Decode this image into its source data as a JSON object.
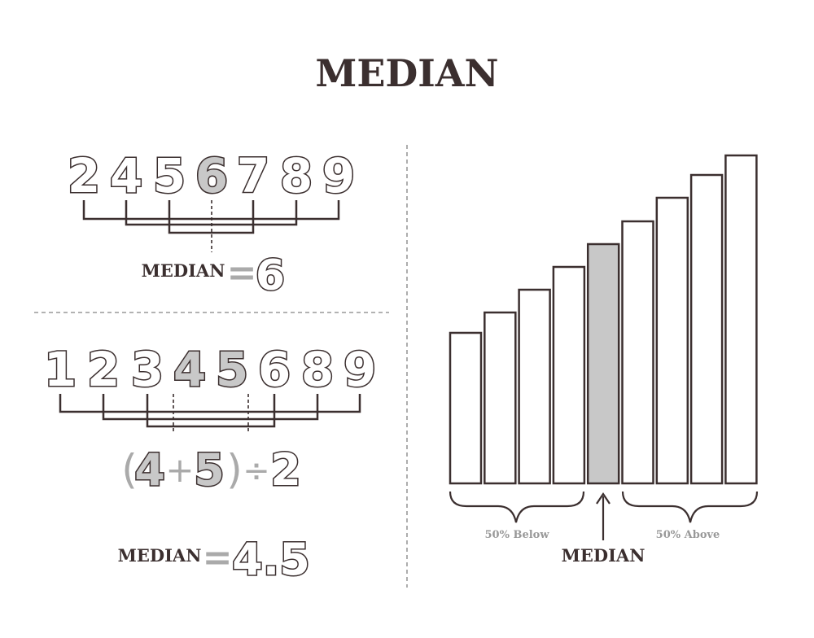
{
  "title": "MEDIAN",
  "odd_example": {
    "numbers": [
      "2",
      "4",
      "5",
      "6",
      "7",
      "8",
      "9"
    ],
    "median_index": 3,
    "label": "MEDIAN",
    "equals": "=",
    "result": "6"
  },
  "even_example": {
    "numbers": [
      "1",
      "2",
      "3",
      "4",
      "5",
      "6",
      "8",
      "9"
    ],
    "median_indices": [
      3,
      4
    ],
    "formula": {
      "open_paren": "(",
      "a": "4",
      "plus": "+",
      "b": "5",
      "close_paren": ")",
      "divide": "÷",
      "divisor": "2"
    },
    "label": "MEDIAN",
    "equals": "=",
    "result": "4.5"
  },
  "bar_chart": {
    "bar_count": 9,
    "relative_heights": [
      0.46,
      0.52,
      0.59,
      0.66,
      0.73,
      0.8,
      0.87,
      0.94,
      1.0
    ],
    "median_index": 4,
    "below_label": "50% Below",
    "above_label": "50% Above",
    "median_label": "MEDIAN"
  },
  "colors": {
    "ink": "#3b2f2f",
    "highlight": "#c8c8c8",
    "muted": "#999999"
  }
}
